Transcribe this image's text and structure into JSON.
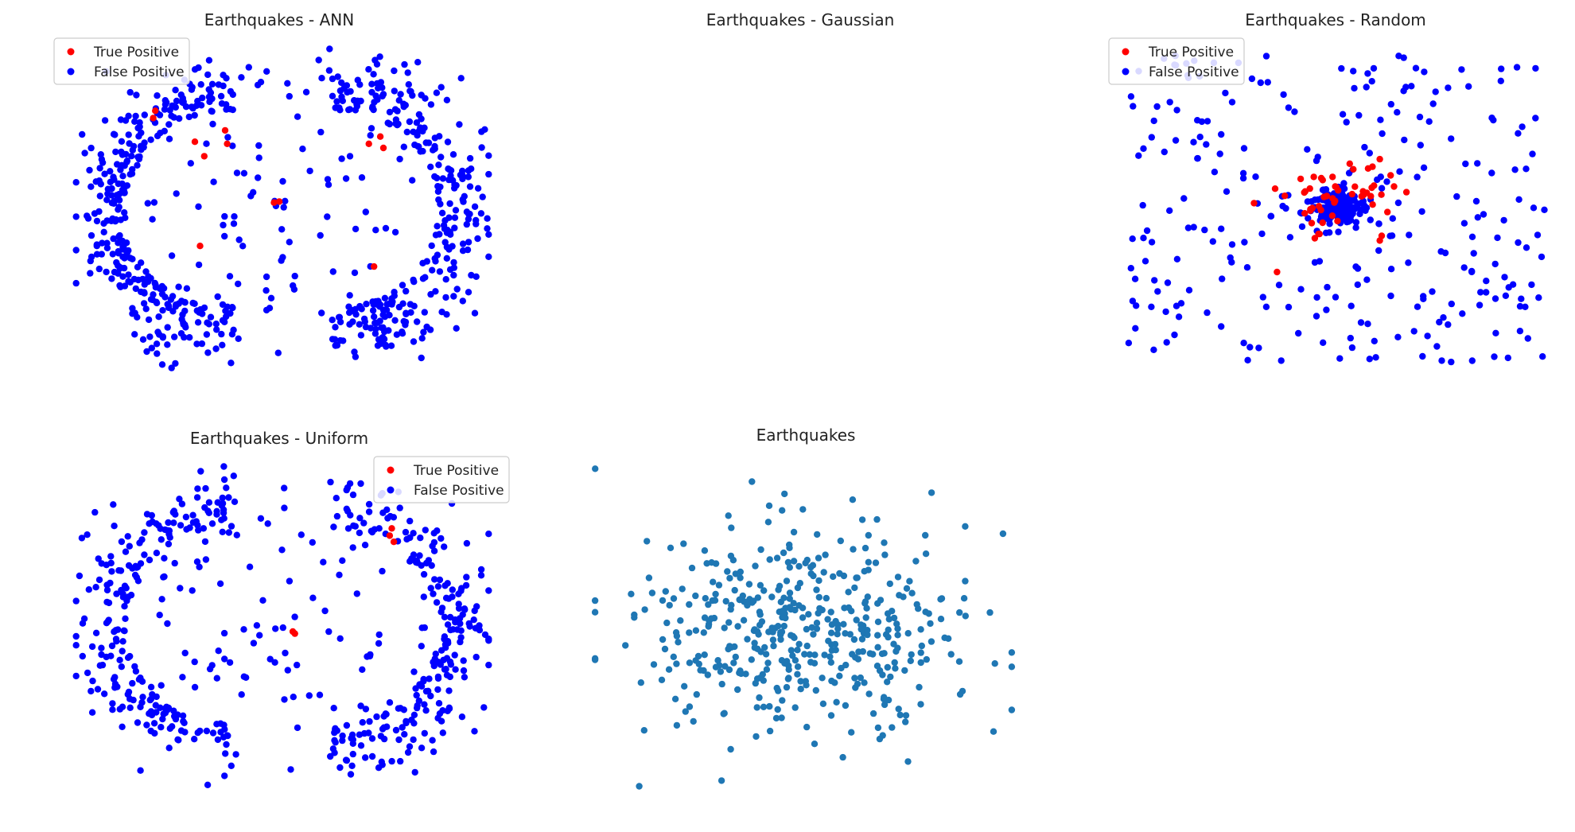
{
  "figure": {
    "point_colors": {
      "true_positive": "#ff0000",
      "false_positive": "#0000ff",
      "plain": "#1f77b4"
    },
    "legend_labels": [
      "True Positive",
      "False Positive"
    ]
  },
  "chart_data": [
    {
      "type": "scatter",
      "title": "Earthquakes - ANN",
      "axes_visible": false,
      "grid": false,
      "legend": {
        "placement": "top-left",
        "entries": [
          "True Positive",
          "False Positive"
        ]
      },
      "xlim": [
        -2.1,
        2.1
      ],
      "ylim": [
        -1.6,
        1.6
      ],
      "distribution": "ring",
      "series": [
        {
          "name": "False Positive",
          "color": "#0000ff",
          "count": 720,
          "seed": 11
        },
        {
          "name": "True Positive",
          "color": "#ff0000",
          "x": [
            -1.22,
            -1.24,
            -0.84,
            -0.75,
            -0.55,
            -0.53,
            -0.08,
            -0.03,
            0.83,
            0.94,
            0.97,
            -0.79,
            0.88
          ],
          "y": [
            0.95,
            0.88,
            0.65,
            0.51,
            0.76,
            0.63,
            0.06,
            0.07,
            0.63,
            0.7,
            0.59,
            -0.36,
            -0.56
          ]
        }
      ]
    },
    {
      "type": "scatter",
      "title": "Earthquakes - Gaussian",
      "axes_visible": false,
      "grid": false,
      "series": []
    },
    {
      "type": "scatter",
      "title": "Earthquakes - Random",
      "axes_visible": false,
      "grid": false,
      "legend": {
        "placement": "top-left",
        "entries": [
          "True Positive",
          "False Positive"
        ]
      },
      "xlim": [
        -2.1,
        2.1
      ],
      "ylim": [
        -1.6,
        1.6
      ],
      "distribution": "spread_with_center_cluster",
      "series": [
        {
          "name": "False Positive",
          "color": "#0000ff",
          "count": 420,
          "cluster_count": 150,
          "seed": 23
        },
        {
          "name": "True Positive",
          "color": "#ff0000",
          "count": 55,
          "seed": 29
        }
      ]
    },
    {
      "type": "scatter",
      "title": "Earthquakes - Uniform",
      "axes_visible": false,
      "grid": false,
      "legend": {
        "placement": "top-right",
        "entries": [
          "True Positive",
          "False Positive"
        ]
      },
      "xlim": [
        -2.1,
        2.1
      ],
      "ylim": [
        -1.6,
        1.6
      ],
      "distribution": "ring",
      "series": [
        {
          "name": "False Positive",
          "color": "#0000ff",
          "count": 560,
          "seed": 37
        },
        {
          "name": "True Positive",
          "color": "#ff0000",
          "x": [
            1.05,
            1.03,
            1.07,
            0.1,
            0.12
          ],
          "y": [
            0.95,
            0.88,
            0.82,
            -0.05,
            -0.07
          ]
        }
      ]
    },
    {
      "type": "scatter",
      "title": "Earthquakes",
      "axes_visible": false,
      "grid": false,
      "xlim": [
        -2.1,
        2.1
      ],
      "ylim": [
        -1.6,
        1.6
      ],
      "distribution": "gaussian",
      "series": [
        {
          "color": "#1f77b4",
          "count": 440,
          "seed": 41
        }
      ]
    }
  ]
}
